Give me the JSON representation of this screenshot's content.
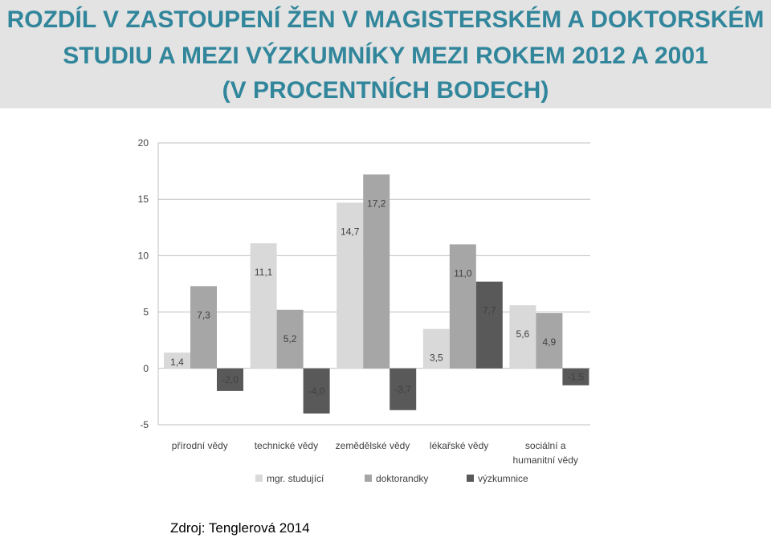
{
  "title_lines": [
    "ROZDÍL V ZASTOUPENÍ ŽEN V MAGISTERSKÉM A DOKTORSKÉM",
    "STUDIU A MEZI VÝZKUMNÍKY MEZI ROKEM 2012 A 2001",
    "(V PROCENTNÍCH BODECH)"
  ],
  "source": "Zdroj: Tenglerová 2014",
  "colors": {
    "title": "#31869b",
    "band": "#e3e3e3"
  },
  "chart_data": {
    "type": "bar",
    "categories": [
      [
        "přírodní vědy"
      ],
      [
        "technické vědy"
      ],
      [
        "zemědělské vědy"
      ],
      [
        "lékařské vědy"
      ],
      [
        "sociální a",
        "humanitní vědy"
      ]
    ],
    "series": [
      {
        "name": "mgr. studující",
        "color": "#d9d9d9",
        "values": [
          1.4,
          11.1,
          14.7,
          3.5,
          5.6
        ],
        "labels": [
          "1,4",
          "11,1",
          "14,7",
          "3,5",
          "5,6"
        ]
      },
      {
        "name": "doktorandky",
        "color": "#a6a6a6",
        "values": [
          7.3,
          5.2,
          17.2,
          11.0,
          4.9
        ],
        "labels": [
          "7,3",
          "5,2",
          "17,2",
          "11,0",
          "4,9"
        ]
      },
      {
        "name": "výzkumnice",
        "color": "#595959",
        "values": [
          -2.0,
          -4.0,
          -3.7,
          7.7,
          -1.5
        ],
        "labels": [
          "-2,0",
          "-4,0",
          "-3,7",
          "7,7",
          "-1,5"
        ]
      }
    ],
    "yticks": [
      "20",
      "15",
      "10",
      "5",
      "0",
      "-5"
    ],
    "ylim": [
      -5,
      20
    ],
    "grid": true,
    "legend": "bottom"
  }
}
